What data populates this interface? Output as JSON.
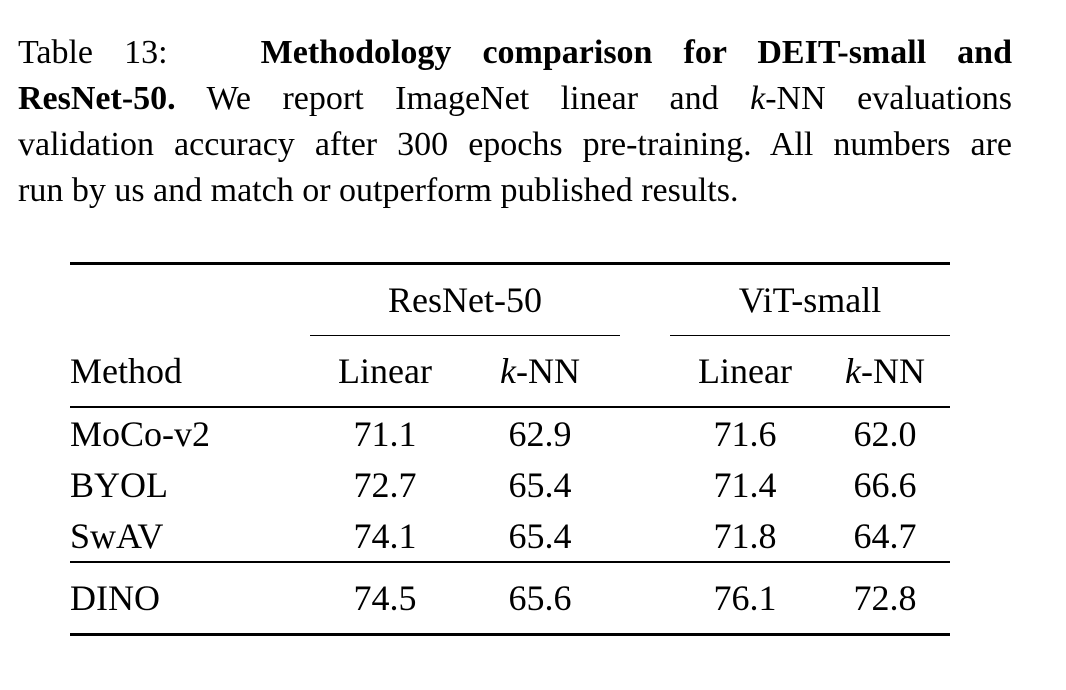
{
  "caption": {
    "label": "Table 13:",
    "title": "Methodology comparison for DEIT-small and ResNet-50.",
    "line1_bold": "Methodology comparison for DEIT-small and",
    "line2_bold": "ResNet-50.",
    "line2_rest_a": " We report ImageNet linear and ",
    "line2_k": "k",
    "line2_rest_b": "-NN evaluations",
    "line3": "validation accuracy after 300 epochs pre-training. All numbers are",
    "line4": "run by us and match or outperform published results."
  },
  "table": {
    "method_header": "Method",
    "groups": [
      {
        "label": "ResNet-50"
      },
      {
        "label": "ViT-small"
      }
    ],
    "linear_label": "Linear",
    "knn_k": "k",
    "knn_rest": "-NN",
    "rows": [
      {
        "method": "MoCo-v2",
        "r50_linear": "71.1",
        "r50_knn": "62.9",
        "vit_linear": "71.6",
        "vit_knn": "62.0"
      },
      {
        "method": "BYOL",
        "r50_linear": "72.7",
        "r50_knn": "65.4",
        "vit_linear": "71.4",
        "vit_knn": "66.6"
      },
      {
        "method": "SwAV",
        "r50_linear": "74.1",
        "r50_knn": "65.4",
        "vit_linear": "71.8",
        "vit_knn": "64.7"
      }
    ],
    "highlight_row": {
      "method": "DINO",
      "r50_linear": "74.5",
      "r50_knn": "65.6",
      "vit_linear": "76.1",
      "vit_knn": "72.8"
    }
  }
}
